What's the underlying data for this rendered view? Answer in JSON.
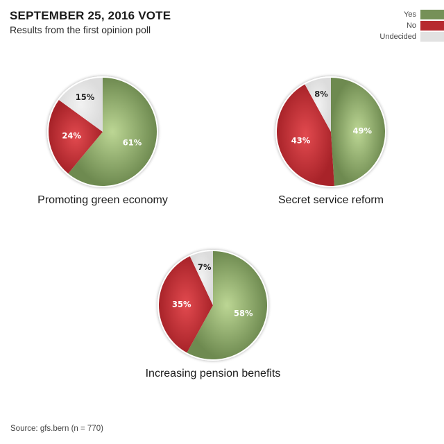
{
  "header": {
    "title": "SEPTEMBER 25, 2016 VOTE",
    "subtitle": "Results from the first opinion poll"
  },
  "legend": [
    {
      "label": "Yes",
      "color": "#769158"
    },
    {
      "label": "No",
      "color": "#b7292f"
    },
    {
      "label": "Undecided",
      "color": "#e2e2e2"
    }
  ],
  "footer": {
    "source": "Source: gfs.bern (n = 770)"
  },
  "chart_data": [
    {
      "type": "pie",
      "title": "Promoting green economy",
      "categories": [
        "Yes",
        "No",
        "Undecided"
      ],
      "values": [
        61,
        24,
        15
      ],
      "labels": [
        "61%",
        "24%",
        "15%"
      ]
    },
    {
      "type": "pie",
      "title": "Secret service reform",
      "categories": [
        "Yes",
        "No",
        "Undecided"
      ],
      "values": [
        49,
        43,
        8
      ],
      "labels": [
        "49%",
        "43%",
        "8%"
      ]
    },
    {
      "type": "pie",
      "title": "Increasing pension benefits",
      "categories": [
        "Yes",
        "No",
        "Undecided"
      ],
      "values": [
        58,
        35,
        7
      ],
      "labels": [
        "58%",
        "35%",
        "7%"
      ]
    }
  ]
}
